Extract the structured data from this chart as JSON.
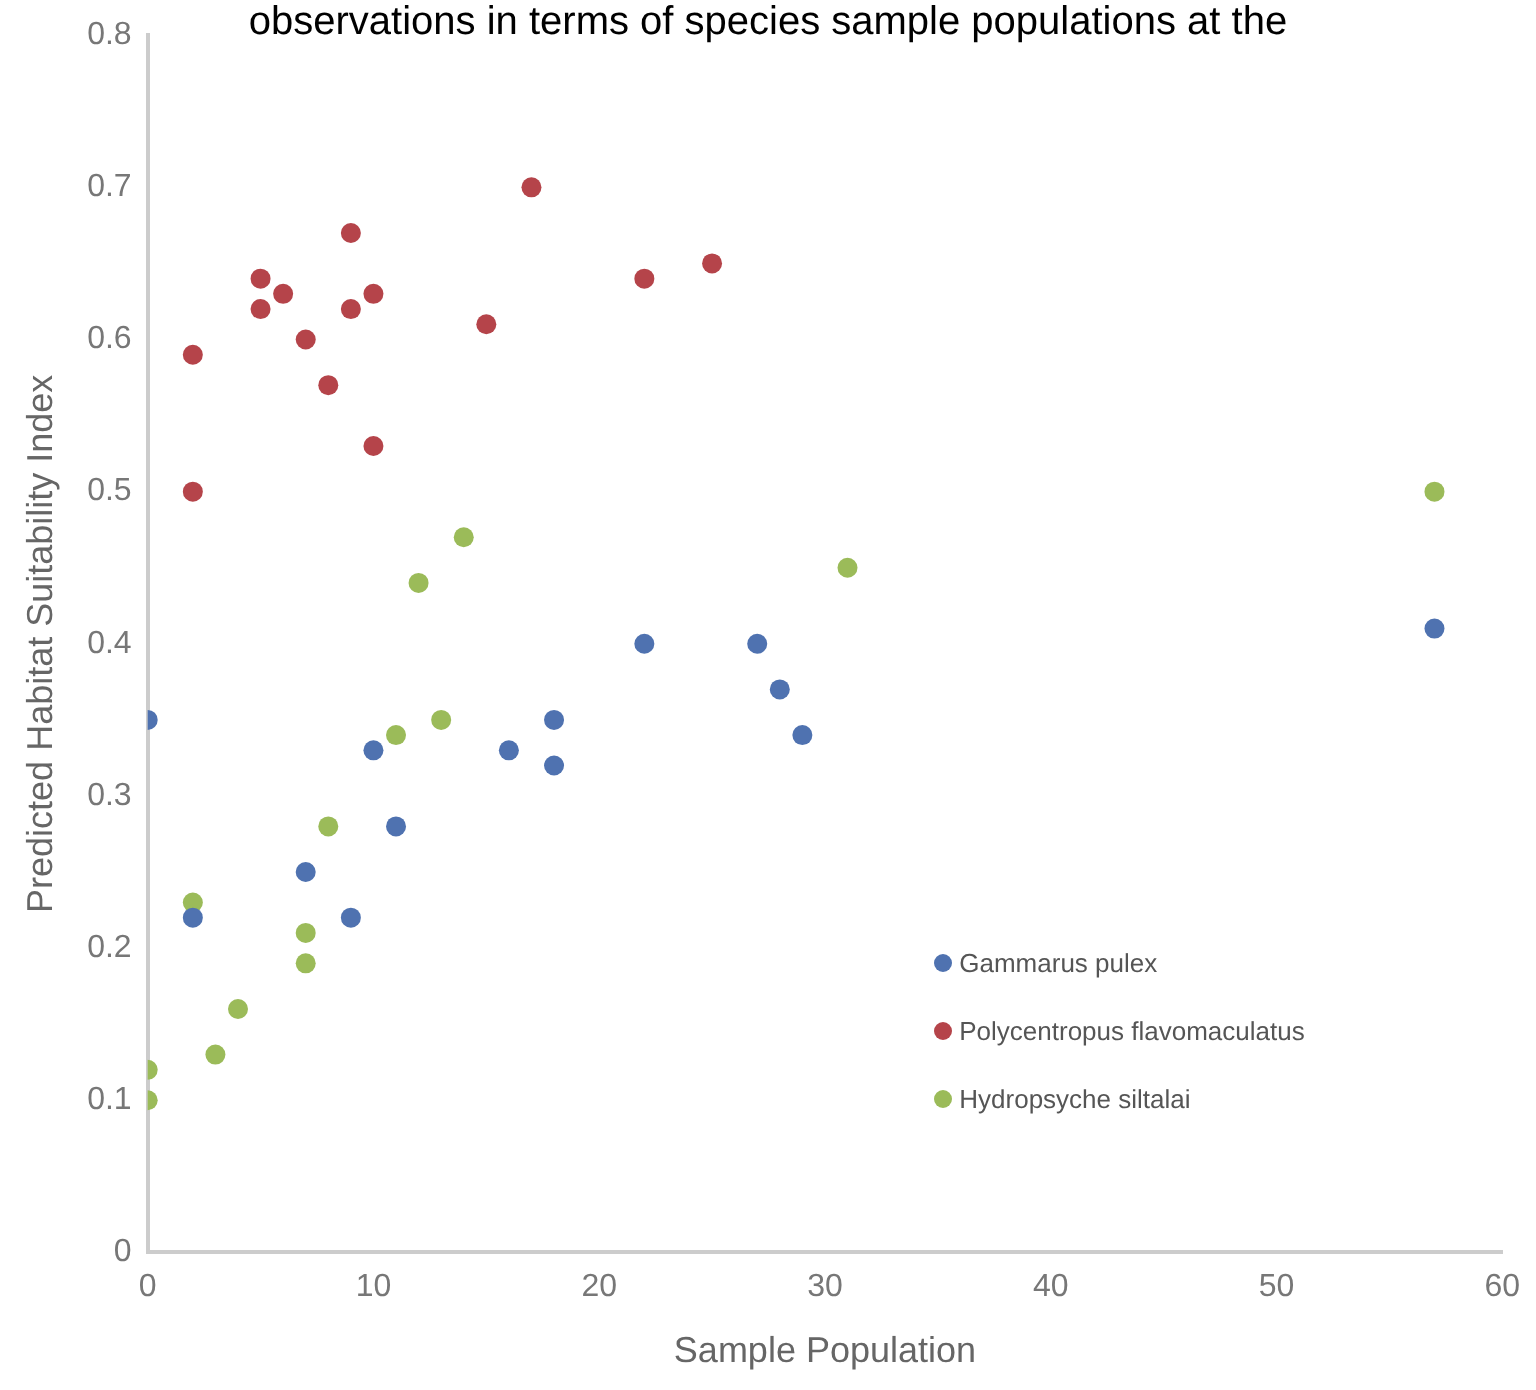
{
  "chart_data": {
    "type": "scatter",
    "xlabel": "Sample Population",
    "ylabel": "Predicted Habitat Suitability Index",
    "annotations": [
      "observations in terms of species sample populations at the"
    ],
    "xlim": [
      0,
      60
    ],
    "xticks": [
      0,
      10,
      20,
      30,
      40,
      50,
      60
    ],
    "ylim": [
      0,
      0.8
    ],
    "yticks": [
      0,
      0.1,
      0.2,
      0.3,
      0.4,
      0.5,
      0.6,
      0.7,
      0.8
    ],
    "grid": false,
    "legend": "bottom right",
    "marker": "circle",
    "series": [
      {
        "name": "Gammarus pulex",
        "color": "#4f72b0",
        "x": [
          0,
          2,
          7,
          9,
          10,
          11,
          16,
          18,
          18,
          22,
          27,
          28,
          29,
          57
        ],
        "values": [
          0.35,
          0.22,
          0.25,
          0.22,
          0.33,
          0.28,
          0.33,
          0.35,
          0.32,
          0.4,
          0.4,
          0.37,
          0.34,
          0.41
        ]
      },
      {
        "name": "Polycentropus flavomaculatus",
        "color": "#b5444a",
        "x": [
          2,
          2,
          5,
          5,
          6,
          7,
          8,
          9,
          9,
          10,
          10,
          15,
          17,
          22,
          25
        ],
        "values": [
          0.59,
          0.5,
          0.64,
          0.62,
          0.63,
          0.6,
          0.57,
          0.67,
          0.62,
          0.63,
          0.53,
          0.61,
          0.7,
          0.64,
          0.65
        ]
      },
      {
        "name": "Hydropsyche siltalai",
        "color": "#9bbb59",
        "x": [
          0,
          0,
          2,
          3,
          4,
          7,
          7,
          8,
          11,
          12,
          13,
          14,
          31,
          57
        ],
        "values": [
          0.12,
          0.1,
          0.23,
          0.13,
          0.16,
          0.21,
          0.19,
          0.28,
          0.34,
          0.44,
          0.35,
          0.47,
          0.45,
          0.5
        ]
      }
    ]
  }
}
